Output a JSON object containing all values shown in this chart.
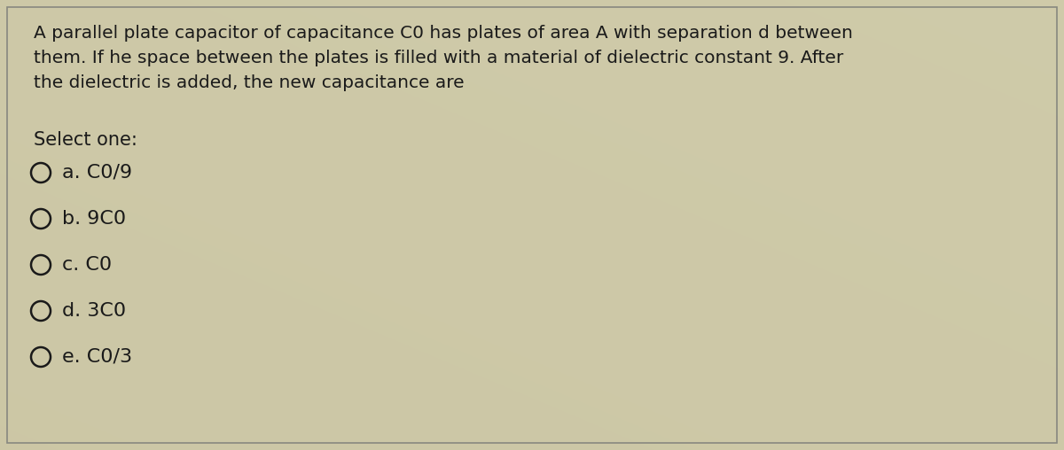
{
  "fig_width": 12.0,
  "fig_height": 5.08,
  "dpi": 100,
  "bg_color": "#b8b49a",
  "box_bg_color": "#d4d0b8",
  "box_edge_color": "#888880",
  "text_color": "#1a1a1a",
  "question_text_line1": "A parallel plate capacitor of capacitance C0 has plates of area A with separation d between",
  "question_text_line2": "them. If he space between the plates is filled with a material of dielectric constant 9. After",
  "question_text_line3": "the dielectric is added, the new capacitance are",
  "select_label": "Select one:",
  "options": [
    "a. C0/9",
    "b. 9C0",
    "c. C0",
    "d. 3C0",
    "e. C0/3"
  ],
  "question_fontsize": 14.5,
  "option_fontsize": 16,
  "select_fontsize": 15
}
